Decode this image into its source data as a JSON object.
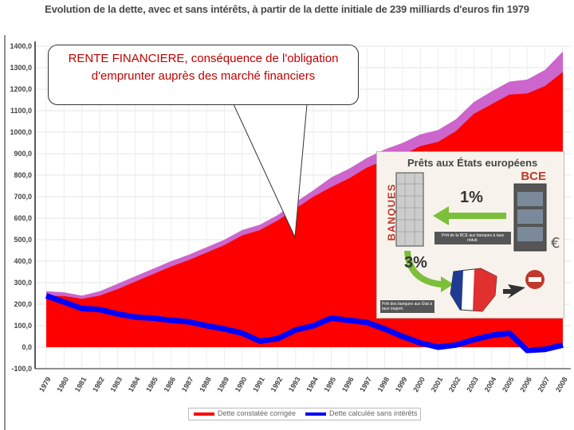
{
  "chart_data": {
    "type": "area",
    "title": "Evolution de la dette, avec et sans intérêts, à partir de la dette initiale de 239 milliards d'euros fin 1979",
    "x": [
      "1979",
      "1980",
      "1981",
      "1982",
      "1983",
      "1984",
      "1985",
      "1986",
      "1987",
      "1988",
      "1989",
      "1990",
      "1991",
      "1992",
      "1993",
      "1994",
      "1995",
      "1996",
      "1997",
      "1998",
      "1999",
      "2000",
      "2001",
      "2002",
      "2003",
      "2004",
      "2005",
      "2006",
      "2007",
      "2008"
    ],
    "y_ticks": [
      "-100,0",
      "0,0",
      "100,0",
      "200,0",
      "300,0",
      "400,0",
      "500,0",
      "600,0",
      "700,0",
      "800,0",
      "900,0",
      "1000,0",
      "1100,0",
      "1200,0",
      "1300,0",
      "1400,0"
    ],
    "ylim": [
      -100,
      1400
    ],
    "grid": true,
    "legend_position": "bottom",
    "series": [
      {
        "name": "Dette constatée corrigée",
        "color": "#ff0000",
        "values": [
          239,
          238,
          225,
          240,
          270,
          305,
          340,
          375,
          405,
          440,
          475,
          520,
          545,
          590,
          645,
          700,
          745,
          785,
          835,
          870,
          895,
          935,
          955,
          1005,
          1085,
          1130,
          1175,
          1180,
          1215,
          1280
        ]
      },
      {
        "name": "Dette calculée sans intérêts",
        "color": "#0000ff",
        "values": [
          239,
          210,
          180,
          175,
          155,
          140,
          135,
          125,
          118,
          100,
          85,
          65,
          28,
          40,
          80,
          100,
          135,
          125,
          115,
          85,
          50,
          20,
          0,
          10,
          35,
          55,
          65,
          -15,
          -10,
          10
        ]
      },
      {
        "color": "#cc66cc",
        "values": [
          260,
          255,
          240,
          260,
          295,
          330,
          365,
          400,
          430,
          465,
          500,
          545,
          570,
          615,
          675,
          730,
          790,
          830,
          880,
          920,
          950,
          990,
          1010,
          1060,
          1140,
          1190,
          1235,
          1245,
          1290,
          1375
        ]
      }
    ],
    "callout": "RENTE FINANCIERE, conséquence de l'obligation d'emprunter auprès des marché financiers",
    "inset": {
      "title": "Prêts aux États européens",
      "bce": "BCE",
      "banques": "BANQUES",
      "rate_bce": "1%",
      "rate_banques": "3%",
      "caption_bce": "Prêt de la BCE aux banques à taux réduit.",
      "caption_banques": "Prêt des banques aux État à taux majoré."
    }
  }
}
